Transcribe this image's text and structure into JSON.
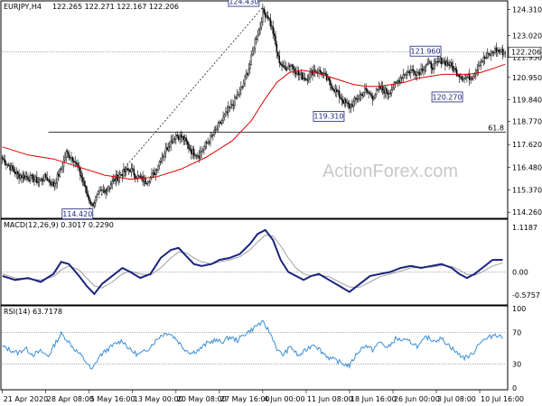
{
  "chart_data": {
    "type": "candlestick",
    "symbol_header": "EURJPY,H4",
    "ohlc_header": "122.265 122.271 122.167 122.206",
    "watermark": "ActionForex.com",
    "x_ticks": [
      {
        "label": "21 Apr 2020",
        "i": 0
      },
      {
        "label": "28 Apr 08:00",
        "i": 34
      },
      {
        "label": "5 May 16:00",
        "i": 68
      },
      {
        "label": "13 May 00:00",
        "i": 102
      },
      {
        "label": "20 May 08:00",
        "i": 136
      },
      {
        "label": "27 May 16:00",
        "i": 170
      },
      {
        "label": "4 Jun 00:00",
        "i": 204
      },
      {
        "label": "11 Jun 08:00",
        "i": 238
      },
      {
        "label": "18 Jun 16:00",
        "i": 272
      },
      {
        "label": "26 Jun 00:00",
        "i": 306
      },
      {
        "label": "3 Jul 08:00",
        "i": 340
      },
      {
        "label": "10 Jul 16:00",
        "i": 374
      }
    ],
    "bar_count": 395,
    "price_panel": {
      "ylim": [
        114.0,
        124.7
      ],
      "y_ticks": [
        {
          "label": "124.310",
          "value": 124.31
        },
        {
          "label": "123.020",
          "value": 123.02
        },
        {
          "label": "121.950",
          "value": 121.95
        },
        {
          "label": "120.950",
          "value": 120.95
        },
        {
          "label": "119.840",
          "value": 119.84
        },
        {
          "label": "118.770",
          "value": 118.77
        },
        {
          "label": "117.620",
          "value": 117.62
        },
        {
          "label": "116.480",
          "value": 116.48
        },
        {
          "label": "115.370",
          "value": 115.37
        },
        {
          "label": "114.260",
          "value": 114.26
        }
      ],
      "last_price": {
        "label": "122.206",
        "value": 122.206
      },
      "price_path": [
        [
          0,
          116.9
        ],
        [
          6,
          116.5
        ],
        [
          12,
          116.1
        ],
        [
          20,
          116.0
        ],
        [
          28,
          115.8
        ],
        [
          34,
          116.0
        ],
        [
          40,
          115.6
        ],
        [
          46,
          116.4
        ],
        [
          50,
          117.2
        ],
        [
          56,
          116.9
        ],
        [
          62,
          116.0
        ],
        [
          66,
          115.2
        ],
        [
          70,
          114.6
        ],
        [
          76,
          115.2
        ],
        [
          82,
          115.4
        ],
        [
          88,
          115.9
        ],
        [
          94,
          116.2
        ],
        [
          100,
          116.4
        ],
        [
          106,
          116.0
        ],
        [
          112,
          115.8
        ],
        [
          118,
          116.1
        ],
        [
          124,
          116.9
        ],
        [
          130,
          117.6
        ],
        [
          136,
          118.1
        ],
        [
          142,
          117.9
        ],
        [
          148,
          117.3
        ],
        [
          154,
          117.1
        ],
        [
          158,
          117.5
        ],
        [
          164,
          118.0
        ],
        [
          170,
          118.6
        ],
        [
          176,
          119.2
        ],
        [
          182,
          119.8
        ],
        [
          188,
          120.5
        ],
        [
          194,
          121.6
        ],
        [
          198,
          122.8
        ],
        [
          202,
          123.5
        ],
        [
          204,
          124.2
        ],
        [
          208,
          124.0
        ],
        [
          212,
          123.2
        ],
        [
          216,
          121.9
        ],
        [
          220,
          121.4
        ],
        [
          226,
          121.6
        ],
        [
          232,
          121.1
        ],
        [
          238,
          120.9
        ],
        [
          244,
          121.3
        ],
        [
          250,
          121.2
        ],
        [
          256,
          120.7
        ],
        [
          262,
          120.2
        ],
        [
          268,
          119.7
        ],
        [
          272,
          119.5
        ],
        [
          278,
          119.9
        ],
        [
          284,
          120.3
        ],
        [
          290,
          120.0
        ],
        [
          296,
          120.4
        ],
        [
          302,
          120.2
        ],
        [
          308,
          120.6
        ],
        [
          314,
          121.1
        ],
        [
          320,
          121.3
        ],
        [
          326,
          121.2
        ],
        [
          332,
          121.6
        ],
        [
          338,
          121.5
        ],
        [
          344,
          121.8
        ],
        [
          350,
          121.6
        ],
        [
          356,
          121.2
        ],
        [
          362,
          120.9
        ],
        [
          368,
          121.0
        ],
        [
          374,
          121.7
        ],
        [
          380,
          122.0
        ],
        [
          386,
          122.3
        ],
        [
          392,
          122.206
        ]
      ],
      "ma_path": [
        [
          0,
          117.5
        ],
        [
          20,
          117.1
        ],
        [
          40,
          116.9
        ],
        [
          60,
          116.5
        ],
        [
          80,
          116.1
        ],
        [
          100,
          115.9
        ],
        [
          120,
          116.0
        ],
        [
          140,
          116.4
        ],
        [
          160,
          117.0
        ],
        [
          180,
          117.8
        ],
        [
          195,
          118.8
        ],
        [
          205,
          119.8
        ],
        [
          215,
          120.7
        ],
        [
          225,
          121.2
        ],
        [
          235,
          121.3
        ],
        [
          245,
          121.2
        ],
        [
          255,
          121.0
        ],
        [
          265,
          120.8
        ],
        [
          275,
          120.6
        ],
        [
          285,
          120.5
        ],
        [
          295,
          120.5
        ],
        [
          305,
          120.6
        ],
        [
          315,
          120.7
        ],
        [
          325,
          120.9
        ],
        [
          335,
          121.0
        ],
        [
          345,
          121.1
        ],
        [
          355,
          121.1
        ],
        [
          365,
          121.1
        ],
        [
          375,
          121.2
        ],
        [
          385,
          121.4
        ],
        [
          394,
          121.6
        ]
      ],
      "trendline": [
        [
          68,
          114.42
        ],
        [
          204,
          124.43
        ]
      ],
      "fib_line": {
        "label": "61.8",
        "value": 118.23,
        "i_start": 36
      },
      "callouts": [
        {
          "label": "124.430",
          "i": 204,
          "value": 124.43,
          "anchor": "left"
        },
        {
          "label": "114.420",
          "i": 68,
          "value": 114.42,
          "anchor": "left"
        },
        {
          "label": "119.310",
          "i": 272,
          "value": 119.31,
          "anchor": "left"
        },
        {
          "label": "121.960",
          "i": 345,
          "value": 121.96,
          "anchor": "left"
        },
        {
          "label": "120.270",
          "i": 362,
          "value": 120.27,
          "anchor": "left"
        }
      ]
    },
    "macd_panel": {
      "title": "MACD(12,26,9) 0.3017 0.2290",
      "ylim": [
        -0.78,
        1.25
      ],
      "y_ticks": [
        {
          "label": "1.1187",
          "value": 1.1187
        },
        {
          "label": "0.00",
          "value": 0.0
        },
        {
          "label": "-0.5757",
          "value": -0.5757
        }
      ],
      "macd_path": [
        [
          0,
          -0.1
        ],
        [
          10,
          -0.2
        ],
        [
          20,
          -0.15
        ],
        [
          30,
          -0.25
        ],
        [
          40,
          -0.05
        ],
        [
          46,
          0.25
        ],
        [
          52,
          0.2
        ],
        [
          60,
          -0.1
        ],
        [
          66,
          -0.35
        ],
        [
          72,
          -0.55
        ],
        [
          78,
          -0.3
        ],
        [
          86,
          -0.1
        ],
        [
          94,
          0.1
        ],
        [
          100,
          0.0
        ],
        [
          108,
          -0.15
        ],
        [
          116,
          -0.05
        ],
        [
          124,
          0.35
        ],
        [
          132,
          0.55
        ],
        [
          138,
          0.6
        ],
        [
          144,
          0.4
        ],
        [
          150,
          0.2
        ],
        [
          156,
          0.15
        ],
        [
          164,
          0.2
        ],
        [
          170,
          0.3
        ],
        [
          178,
          0.35
        ],
        [
          186,
          0.45
        ],
        [
          194,
          0.7
        ],
        [
          200,
          0.95
        ],
        [
          206,
          1.05
        ],
        [
          212,
          0.8
        ],
        [
          218,
          0.3
        ],
        [
          224,
          0.0
        ],
        [
          230,
          -0.1
        ],
        [
          236,
          -0.2
        ],
        [
          242,
          -0.1
        ],
        [
          248,
          -0.05
        ],
        [
          256,
          -0.2
        ],
        [
          264,
          -0.35
        ],
        [
          272,
          -0.5
        ],
        [
          280,
          -0.3
        ],
        [
          288,
          -0.1
        ],
        [
          296,
          -0.05
        ],
        [
          304,
          0.0
        ],
        [
          312,
          0.1
        ],
        [
          320,
          0.15
        ],
        [
          328,
          0.1
        ],
        [
          336,
          0.15
        ],
        [
          344,
          0.2
        ],
        [
          352,
          0.1
        ],
        [
          358,
          -0.05
        ],
        [
          364,
          -0.15
        ],
        [
          370,
          -0.05
        ],
        [
          376,
          0.1
        ],
        [
          384,
          0.3
        ],
        [
          392,
          0.3017
        ]
      ],
      "signal_path": [
        [
          0,
          -0.05
        ],
        [
          10,
          -0.15
        ],
        [
          20,
          -0.18
        ],
        [
          30,
          -0.2
        ],
        [
          40,
          -0.12
        ],
        [
          46,
          0.05
        ],
        [
          52,
          0.15
        ],
        [
          60,
          0.05
        ],
        [
          66,
          -0.15
        ],
        [
          72,
          -0.35
        ],
        [
          78,
          -0.4
        ],
        [
          86,
          -0.25
        ],
        [
          94,
          -0.05
        ],
        [
          100,
          0.02
        ],
        [
          108,
          -0.05
        ],
        [
          116,
          -0.08
        ],
        [
          124,
          0.1
        ],
        [
          132,
          0.35
        ],
        [
          138,
          0.5
        ],
        [
          144,
          0.48
        ],
        [
          150,
          0.35
        ],
        [
          156,
          0.25
        ],
        [
          164,
          0.2
        ],
        [
          170,
          0.25
        ],
        [
          178,
          0.3
        ],
        [
          186,
          0.38
        ],
        [
          194,
          0.55
        ],
        [
          200,
          0.75
        ],
        [
          206,
          0.92
        ],
        [
          212,
          0.9
        ],
        [
          218,
          0.65
        ],
        [
          224,
          0.35
        ],
        [
          230,
          0.1
        ],
        [
          236,
          -0.05
        ],
        [
          242,
          -0.1
        ],
        [
          248,
          -0.08
        ],
        [
          256,
          -0.12
        ],
        [
          264,
          -0.25
        ],
        [
          272,
          -0.38
        ],
        [
          280,
          -0.38
        ],
        [
          288,
          -0.25
        ],
        [
          296,
          -0.12
        ],
        [
          304,
          -0.05
        ],
        [
          312,
          0.02
        ],
        [
          320,
          0.1
        ],
        [
          328,
          0.12
        ],
        [
          336,
          0.12
        ],
        [
          344,
          0.16
        ],
        [
          352,
          0.14
        ],
        [
          358,
          0.05
        ],
        [
          364,
          -0.06
        ],
        [
          370,
          -0.08
        ],
        [
          376,
          0.0
        ],
        [
          384,
          0.15
        ],
        [
          392,
          0.229
        ]
      ]
    },
    "rsi_panel": {
      "title": "RSI(14) 63.7178",
      "ylim": [
        0,
        100
      ],
      "y_ticks": [
        {
          "label": "100",
          "value": 100
        },
        {
          "label": "70",
          "value": 70
        },
        {
          "label": "30",
          "value": 30
        },
        {
          "label": "0",
          "value": 0
        }
      ],
      "rsi_path": [
        [
          0,
          52
        ],
        [
          6,
          48
        ],
        [
          12,
          44
        ],
        [
          18,
          50
        ],
        [
          24,
          42
        ],
        [
          30,
          46
        ],
        [
          36,
          40
        ],
        [
          42,
          58
        ],
        [
          46,
          68
        ],
        [
          50,
          62
        ],
        [
          56,
          50
        ],
        [
          62,
          40
        ],
        [
          66,
          32
        ],
        [
          70,
          22
        ],
        [
          76,
          40
        ],
        [
          82,
          48
        ],
        [
          88,
          55
        ],
        [
          94,
          60
        ],
        [
          100,
          48
        ],
        [
          106,
          42
        ],
        [
          112,
          46
        ],
        [
          118,
          56
        ],
        [
          124,
          66
        ],
        [
          130,
          70
        ],
        [
          136,
          62
        ],
        [
          142,
          50
        ],
        [
          148,
          44
        ],
        [
          154,
          48
        ],
        [
          160,
          56
        ],
        [
          166,
          60
        ],
        [
          172,
          58
        ],
        [
          178,
          64
        ],
        [
          184,
          60
        ],
        [
          190,
          68
        ],
        [
          196,
          74
        ],
        [
          200,
          80
        ],
        [
          204,
          82
        ],
        [
          208,
          74
        ],
        [
          212,
          62
        ],
        [
          216,
          46
        ],
        [
          220,
          42
        ],
        [
          226,
          52
        ],
        [
          232,
          40
        ],
        [
          238,
          48
        ],
        [
          244,
          56
        ],
        [
          250,
          46
        ],
        [
          256,
          38
        ],
        [
          262,
          34
        ],
        [
          268,
          30
        ],
        [
          272,
          28
        ],
        [
          278,
          44
        ],
        [
          284,
          54
        ],
        [
          290,
          48
        ],
        [
          296,
          58
        ],
        [
          302,
          50
        ],
        [
          308,
          62
        ],
        [
          314,
          60
        ],
        [
          320,
          58
        ],
        [
          326,
          52
        ],
        [
          332,
          64
        ],
        [
          338,
          60
        ],
        [
          344,
          62
        ],
        [
          350,
          54
        ],
        [
          356,
          44
        ],
        [
          362,
          38
        ],
        [
          368,
          42
        ],
        [
          374,
          58
        ],
        [
          380,
          62
        ],
        [
          386,
          68
        ],
        [
          392,
          63.72
        ]
      ]
    }
  }
}
